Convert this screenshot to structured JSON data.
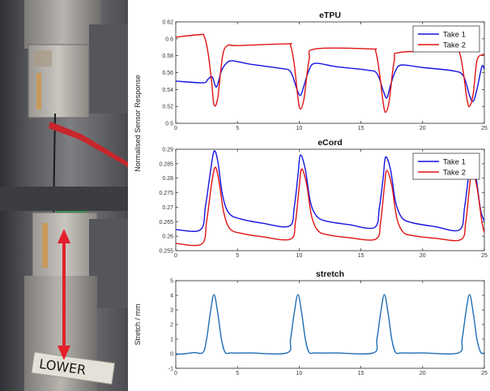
{
  "photo": {
    "plate_label": "LOWER",
    "colors": {
      "arrow": "#e3202a",
      "clip_red": "#c8262b",
      "clip_green": "#2a9a4a",
      "wire": "#1a1a1a"
    }
  },
  "shared": {
    "ylabel": "Normalised Sensor Response"
  },
  "chart_data": [
    {
      "type": "line",
      "title": "eTPU",
      "xlabel": "",
      "ylabel": "",
      "xlim": [
        0,
        25
      ],
      "ylim": [
        0.5,
        0.62
      ],
      "xticks": [
        "0",
        "5",
        "10",
        "15",
        "20",
        "25"
      ],
      "yticks": [
        "0.5",
        "0.52",
        "0.54",
        "0.56",
        "0.58",
        "0.6",
        "0.62"
      ],
      "legend": "top-right",
      "series": [
        {
          "name": "Take 1",
          "color": "#1414e0",
          "x": [
            0,
            2.2,
            2.6,
            2.95,
            3.3,
            3.7,
            4.1,
            4.6,
            6.0,
            8.5,
            9.3,
            9.8,
            10.1,
            10.4,
            10.8,
            11.3,
            13.0,
            15.5,
            16.3,
            16.8,
            17.1,
            17.4,
            17.8,
            18.3,
            20.0,
            22.5,
            23.3,
            23.8,
            24.1,
            24.4,
            24.8,
            25
          ],
          "values": [
            0.55,
            0.548,
            0.552,
            0.555,
            0.543,
            0.562,
            0.571,
            0.574,
            0.57,
            0.565,
            0.561,
            0.541,
            0.533,
            0.545,
            0.563,
            0.571,
            0.567,
            0.563,
            0.559,
            0.539,
            0.53,
            0.545,
            0.562,
            0.569,
            0.566,
            0.562,
            0.556,
            0.533,
            0.526,
            0.54,
            0.567,
            0.564
          ]
        },
        {
          "name": "Take 2",
          "color": "#e01414",
          "x": [
            0,
            2.0,
            2.3,
            2.6,
            2.9,
            3.1,
            3.4,
            3.8,
            4.2,
            5.0,
            9.0,
            9.3,
            9.6,
            9.9,
            10.1,
            10.4,
            10.8,
            11.3,
            15.8,
            16.2,
            16.5,
            16.8,
            17.0,
            17.3,
            17.7,
            18.2,
            22.6,
            23.0,
            23.3,
            23.6,
            23.8,
            24.1,
            24.4,
            24.8,
            25
          ],
          "values": [
            0.602,
            0.605,
            0.603,
            0.585,
            0.55,
            0.522,
            0.53,
            0.58,
            0.592,
            0.592,
            0.594,
            0.592,
            0.57,
            0.53,
            0.517,
            0.53,
            0.575,
            0.588,
            0.588,
            0.585,
            0.56,
            0.525,
            0.513,
            0.527,
            0.574,
            0.584,
            0.585,
            0.583,
            0.56,
            0.528,
            0.52,
            0.535,
            0.574,
            0.581,
            0.581
          ]
        }
      ]
    },
    {
      "type": "line",
      "title": "eCord",
      "xlabel": "",
      "ylabel": "",
      "xlim": [
        0,
        25
      ],
      "ylim": [
        0.255,
        0.29
      ],
      "xticks": [
        "0",
        "5",
        "10",
        "15",
        "20",
        "25"
      ],
      "yticks": [
        "0.255",
        "0.26",
        "0.265",
        "0.27",
        "0.275",
        "0.28",
        "0.285",
        "0.29"
      ],
      "legend": "top-right",
      "series": [
        {
          "name": "Take 1",
          "color": "#1414e0",
          "x": [
            0,
            2.0,
            2.4,
            2.8,
            3.1,
            3.4,
            3.8,
            4.3,
            5.2,
            7.0,
            9.2,
            9.6,
            9.9,
            10.1,
            10.5,
            10.9,
            11.4,
            12.2,
            14.0,
            16.1,
            16.5,
            16.8,
            17.0,
            17.4,
            17.8,
            18.3,
            19.1,
            21.0,
            23.0,
            23.4,
            23.7,
            23.9,
            24.3,
            24.7,
            25
          ],
          "values": [
            0.2623,
            0.2622,
            0.27,
            0.282,
            0.2893,
            0.286,
            0.274,
            0.268,
            0.266,
            0.2645,
            0.2635,
            0.27,
            0.281,
            0.288,
            0.283,
            0.272,
            0.267,
            0.2652,
            0.264,
            0.263,
            0.27,
            0.28,
            0.2873,
            0.283,
            0.272,
            0.2665,
            0.2647,
            0.2633,
            0.2622,
            0.27,
            0.28,
            0.2865,
            0.281,
            0.269,
            0.2652
          ]
        },
        {
          "name": "Take 2",
          "color": "#e01414",
          "x": [
            0,
            2.1,
            2.5,
            2.9,
            3.2,
            3.5,
            3.9,
            4.4,
            5.3,
            7.0,
            9.3,
            9.7,
            10.0,
            10.2,
            10.6,
            11.0,
            11.5,
            12.3,
            14.0,
            16.2,
            16.6,
            16.9,
            17.1,
            17.5,
            17.9,
            18.4,
            19.2,
            21.0,
            23.1,
            23.5,
            23.8,
            24.0,
            24.4,
            24.8,
            25
          ],
          "values": [
            0.2575,
            0.2573,
            0.265,
            0.278,
            0.2838,
            0.279,
            0.268,
            0.2625,
            0.261,
            0.2598,
            0.259,
            0.265,
            0.277,
            0.2832,
            0.278,
            0.267,
            0.262,
            0.2605,
            0.2595,
            0.259,
            0.265,
            0.277,
            0.2827,
            0.2775,
            0.2665,
            0.2615,
            0.2602,
            0.2593,
            0.2588,
            0.265,
            0.277,
            0.2825,
            0.277,
            0.265,
            0.2612
          ]
        }
      ]
    },
    {
      "type": "line",
      "title": "stretch",
      "xlabel": "",
      "ylabel": "Stretch / mm",
      "xlim": [
        0,
        25
      ],
      "ylim": [
        -1,
        5
      ],
      "xticks": [
        "0",
        "5",
        "10",
        "15",
        "20",
        "25"
      ],
      "yticks": [
        "-1",
        "0",
        "1",
        "2",
        "3",
        "4",
        "5"
      ],
      "legend": "none",
      "series": [
        {
          "name": "",
          "color": "#1f6eb5",
          "x": [
            0,
            0.8,
            1.5,
            2.2,
            2.5,
            2.8,
            3.1,
            3.4,
            3.7,
            4.0,
            4.5,
            6.0,
            9.0,
            9.3,
            9.6,
            9.9,
            10.2,
            10.5,
            10.8,
            11.3,
            13.0,
            16.0,
            16.3,
            16.6,
            16.9,
            17.2,
            17.5,
            17.8,
            18.3,
            20.0,
            22.9,
            23.2,
            23.5,
            23.8,
            24.1,
            24.4,
            24.7,
            25
          ],
          "values": [
            -0.05,
            0.0,
            0.08,
            0.08,
            1.0,
            2.8,
            4.05,
            2.8,
            1.0,
            0.1,
            0.05,
            0.05,
            0.05,
            1.0,
            2.8,
            4.05,
            2.8,
            1.0,
            0.1,
            0.05,
            0.05,
            0.05,
            1.0,
            2.8,
            4.05,
            2.8,
            1.0,
            0.1,
            0.05,
            0.05,
            0.05,
            1.0,
            2.8,
            4.05,
            2.8,
            1.0,
            0.1,
            0.05
          ]
        }
      ]
    }
  ]
}
